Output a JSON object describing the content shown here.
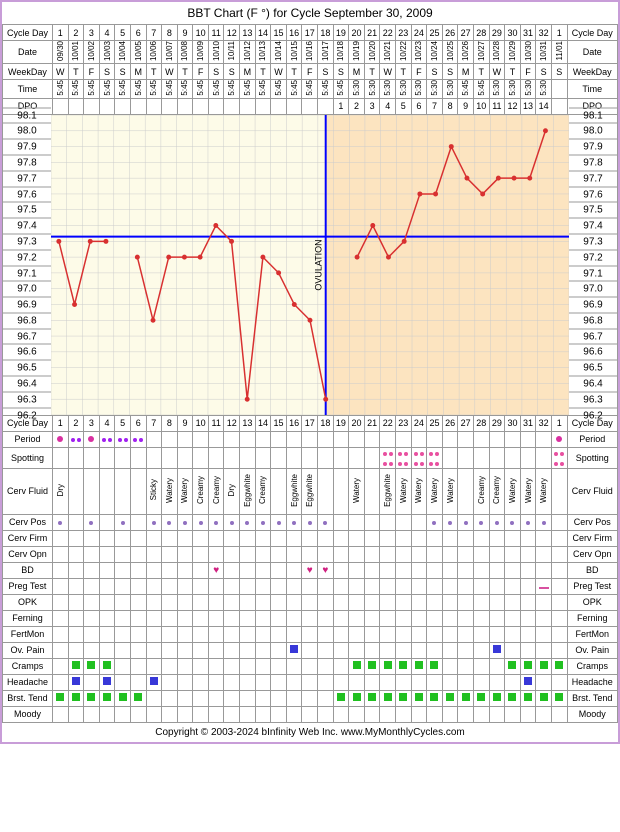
{
  "title": "BBT Chart (F °) for Cycle September 30, 2009",
  "footer": "Copyright © 2003-2024 bInfinity Web Inc.    www.MyMonthlyCycles.com",
  "numDays": 33,
  "labels": {
    "cycleDay": "Cycle Day",
    "date": "Date",
    "weekday": "WeekDay",
    "time": "Time",
    "dpo": "DPO",
    "period": "Period",
    "spotting": "Spotting",
    "cervFluid": "Cerv Fluid",
    "cervPos": "Cerv Pos",
    "cervFirm": "Cerv Firm",
    "cervOpn": "Cerv Opn",
    "bd": "BD",
    "pregTest": "Preg Test",
    "opk": "OPK",
    "ferning": "Ferning",
    "fertMon": "FertMon",
    "ovPain": "Ov. Pain",
    "cramps": "Cramps",
    "headache": "Headache",
    "brstTend": "Brst. Tend",
    "moody": "Moody"
  },
  "cycleDays": [
    "1",
    "2",
    "3",
    "4",
    "5",
    "6",
    "7",
    "8",
    "9",
    "10",
    "11",
    "12",
    "13",
    "14",
    "15",
    "16",
    "17",
    "18",
    "19",
    "20",
    "21",
    "22",
    "23",
    "24",
    "25",
    "26",
    "27",
    "28",
    "29",
    "30",
    "31",
    "32",
    "1"
  ],
  "dates": [
    "09/30",
    "10/01",
    "10/02",
    "10/03",
    "10/04",
    "10/05",
    "10/06",
    "10/07",
    "10/08",
    "10/09",
    "10/10",
    "10/11",
    "10/12",
    "10/13",
    "10/14",
    "10/15",
    "10/16",
    "10/17",
    "10/18",
    "10/19",
    "10/20",
    "10/21",
    "10/22",
    "10/23",
    "10/24",
    "10/25",
    "10/26",
    "10/27",
    "10/28",
    "10/29",
    "10/30",
    "10/31",
    "11/01"
  ],
  "weekdays": [
    "W",
    "T",
    "F",
    "S",
    "S",
    "M",
    "T",
    "W",
    "T",
    "F",
    "S",
    "S",
    "M",
    "T",
    "W",
    "T",
    "F",
    "S",
    "S",
    "M",
    "T",
    "W",
    "T",
    "F",
    "S",
    "S",
    "M",
    "T",
    "W",
    "T",
    "F",
    "S",
    "S"
  ],
  "times": [
    "5:45",
    "5:45",
    "5:45",
    "5:45",
    "5:45",
    "5:45",
    "5:45",
    "5:45",
    "5:45",
    "5:45",
    "5:45",
    "5:45",
    "5:45",
    "5:45",
    "5:45",
    "5:45",
    "5:45",
    "5:45",
    "5:45",
    "5:30",
    "5:30",
    "5:30",
    "5:30",
    "5:30",
    "5:30",
    "5:30",
    "5:45",
    "5:45",
    "5:30",
    "5:30",
    "5:30",
    "5:30",
    ""
  ],
  "dpo": [
    "",
    "",
    "",
    "",
    "",
    "",
    "",
    "",
    "",
    "",
    "",
    "",
    "",
    "",
    "",
    "",
    "",
    "",
    "1",
    "2",
    "3",
    "4",
    "5",
    "6",
    "7",
    "8",
    "9",
    "10",
    "11",
    "12",
    "13",
    "14",
    ""
  ],
  "ovulationDay": 18,
  "coverlineTemp": 97.33,
  "temps": {
    "ymin": 96.2,
    "ymax": 98.1,
    "step": 0.1,
    "values": [
      97.3,
      96.9,
      97.3,
      97.3,
      null,
      97.2,
      96.8,
      97.2,
      97.2,
      97.2,
      97.4,
      97.3,
      96.3,
      97.2,
      97.1,
      96.9,
      96.8,
      96.3,
      null,
      97.2,
      97.4,
      97.2,
      97.3,
      97.6,
      97.6,
      97.9,
      97.7,
      97.6,
      97.7,
      97.7,
      97.7,
      98.0,
      null
    ],
    "lineColor": "#d83030",
    "pointColor": "#d83030",
    "lineWidth": 1.5,
    "pointRadius": 2.5,
    "bgPre": "#fdfbe8",
    "bgPost": "#fce4c0",
    "gridColor": "#cccccc",
    "coverlineColor": "#0000ff",
    "ovLineColor": "#0000ff"
  },
  "ylabels": [
    "98.1",
    "98.0",
    "97.9",
    "97.8",
    "97.7",
    "97.6",
    "97.5",
    "97.4",
    "97.3",
    "97.2",
    "97.1",
    "97.0",
    "96.9",
    "96.8",
    "96.7",
    "96.6",
    "96.5",
    "96.4",
    "96.3",
    "96.2"
  ],
  "period": {
    "full": [
      1,
      3
    ],
    "light": [
      2,
      4,
      5,
      6
    ],
    "last": [
      33
    ]
  },
  "spotting": [
    22,
    23,
    24,
    25,
    33
  ],
  "cervFluid": [
    "Dry",
    "",
    "",
    "",
    "",
    "",
    "Sticky",
    "Watery",
    "Watery",
    "Creamy",
    "Creamy",
    "Dry",
    "Eggwhite",
    "Creamy",
    "",
    "Eggwhite",
    "Eggwhite",
    "",
    "",
    "Watery",
    "",
    "Eggwhite",
    "Watery",
    "Watery",
    "Watery",
    "Watery",
    "",
    "Creamy",
    "Creamy",
    "Watery",
    "Watery",
    "Watery",
    ""
  ],
  "cervPos": [
    1,
    3,
    5,
    7,
    8,
    9,
    10,
    11,
    12,
    13,
    14,
    15,
    16,
    17,
    18,
    25,
    26,
    27,
    28,
    29,
    30,
    31,
    32
  ],
  "bd": [
    11,
    17,
    18
  ],
  "pregTest": [
    32
  ],
  "ovPain": [
    16,
    29
  ],
  "cramps": [
    2,
    3,
    4,
    20,
    21,
    22,
    23,
    24,
    25,
    30,
    31,
    32,
    33
  ],
  "headache": [
    2,
    4,
    7,
    31
  ],
  "brstTend": [
    1,
    2,
    3,
    4,
    5,
    6,
    19,
    20,
    21,
    22,
    23,
    24,
    25,
    26,
    27,
    28,
    29,
    30,
    31,
    32,
    33
  ]
}
